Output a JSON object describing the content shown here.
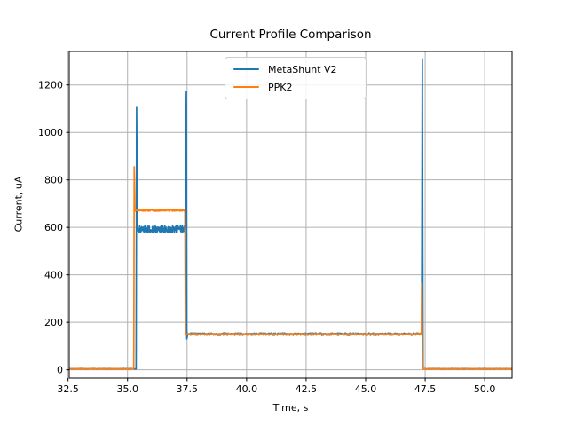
{
  "figure": {
    "background": "#ffffff",
    "text_color": "#000000",
    "spine_color": "#000000"
  },
  "chart_data": {
    "type": "line",
    "title": "Current Profile Comparison",
    "xlabel": "Time, s",
    "ylabel": "Current, uA",
    "xlim": [
      32.55,
      51.15
    ],
    "ylim": [
      -35,
      1341
    ],
    "grid": true,
    "grid_color": "#b0b0b0",
    "legend_position": "upper center",
    "xticks": [
      {
        "v": 32.5,
        "label": "32.5"
      },
      {
        "v": 35.0,
        "label": "35.0"
      },
      {
        "v": 37.5,
        "label": "37.5"
      },
      {
        "v": 40.0,
        "label": "40.0"
      },
      {
        "v": 42.5,
        "label": "42.5"
      },
      {
        "v": 45.0,
        "label": "45.0"
      },
      {
        "v": 47.5,
        "label": "47.5"
      },
      {
        "v": 50.0,
        "label": "50.0"
      }
    ],
    "yticks": [
      {
        "v": 0,
        "label": "0"
      },
      {
        "v": 200,
        "label": "200"
      },
      {
        "v": 400,
        "label": "400"
      },
      {
        "v": 600,
        "label": "600"
      },
      {
        "v": 800,
        "label": "800"
      },
      {
        "v": 1000,
        "label": "1000"
      },
      {
        "v": 1200,
        "label": "1200"
      }
    ],
    "series": [
      {
        "name": "MetaShunt V2",
        "color": "#1f77b4",
        "segments": [
          {
            "type": "flat",
            "x0": 32.55,
            "x1": 35.36,
            "y": 4,
            "noise": 1.5
          },
          {
            "type": "spike",
            "x": 35.38,
            "peak": 1105
          },
          {
            "type": "flat",
            "x0": 35.41,
            "x1": 37.42,
            "y": 592,
            "noise": 15
          },
          {
            "type": "spike",
            "x": 37.47,
            "peak": 1172
          },
          {
            "type": "dip",
            "x": 37.49,
            "low": 130
          },
          {
            "type": "flat",
            "x0": 37.52,
            "x1": 47.35,
            "y": 150,
            "noise": 5
          },
          {
            "type": "spike",
            "x": 47.38,
            "peak": 1310
          },
          {
            "type": "flat",
            "x0": 47.41,
            "x1": 51.15,
            "y": 4,
            "noise": 1.5
          }
        ]
      },
      {
        "name": "PPK2",
        "color": "#ff7f0e",
        "segments": [
          {
            "type": "flat",
            "x0": 32.55,
            "x1": 35.26,
            "y": 4,
            "noise": 1
          },
          {
            "type": "spike",
            "x": 35.28,
            "peak": 855
          },
          {
            "type": "flat",
            "x0": 35.31,
            "x1": 37.41,
            "y": 672,
            "noise": 4
          },
          {
            "type": "flat",
            "x0": 37.43,
            "x1": 47.34,
            "y": 150,
            "noise": 2.5
          },
          {
            "type": "spike",
            "x": 47.36,
            "peak": 365
          },
          {
            "type": "flat",
            "x0": 47.39,
            "x1": 51.15,
            "y": 4,
            "noise": 1
          }
        ]
      }
    ]
  }
}
